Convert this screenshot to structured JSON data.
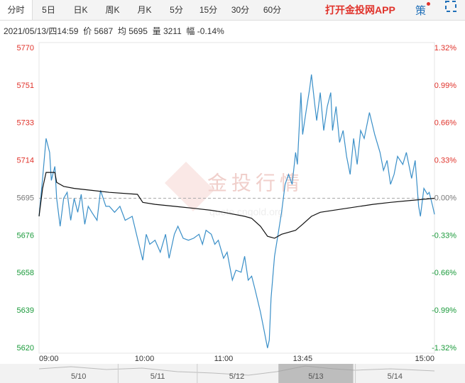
{
  "tabs": [
    "分时",
    "5日",
    "日K",
    "周K",
    "月K",
    "5分",
    "15分",
    "30分",
    "60分"
  ],
  "app_link": "打开金投网APP",
  "strategy": "策",
  "info": {
    "time": "2021/05/13/四14:59",
    "price_label": "价",
    "price": "5687",
    "avg_label": "均",
    "avg": "5695",
    "vol_label": "量",
    "vol": "3211",
    "change_label": "幅",
    "change": "-0.14%"
  },
  "watermark": [
    "金投行情",
    "quote.cngold.org"
  ],
  "navigator": {
    "dates": [
      "5/10",
      "5/11",
      "5/12",
      "5/13",
      "5/14"
    ],
    "selected": 3
  },
  "chart_data": {
    "type": "line",
    "xlim": [
      0,
      225
    ],
    "xticks": [
      {
        "value": 0,
        "label": "09:00"
      },
      {
        "value": 60,
        "label": "10:00"
      },
      {
        "value": 105,
        "label": "11:00"
      },
      {
        "value": 150,
        "label": "13:45"
      },
      {
        "value": 225,
        "label": "15:00"
      }
    ],
    "ylim": [
      5619.9,
      5770.2
    ],
    "yticks": [
      {
        "value": 5770.2,
        "label": "5770"
      },
      {
        "value": 5751.4,
        "label": "5751"
      },
      {
        "value": 5732.6,
        "label": "5733"
      },
      {
        "value": 5713.8,
        "label": "5714"
      },
      {
        "value": 5695.0,
        "label": "5695"
      },
      {
        "value": 5676.2,
        "label": "5676"
      },
      {
        "value": 5657.5,
        "label": "5658"
      },
      {
        "value": 5638.7,
        "label": "5639"
      },
      {
        "value": 5619.9,
        "label": "5620"
      }
    ],
    "y2lim": [
      -1.32,
      1.32
    ],
    "y2ticks": [
      {
        "value": 1.32,
        "label": "1.32%"
      },
      {
        "value": 0.99,
        "label": "0.99%"
      },
      {
        "value": 0.66,
        "label": "0.66%"
      },
      {
        "value": 0.33,
        "label": "0.33%"
      },
      {
        "value": 0,
        "label": "0.00%"
      },
      {
        "value": -0.33,
        "label": "-0.33%"
      },
      {
        "value": -0.66,
        "label": "-0.66%"
      },
      {
        "value": -0.99,
        "label": "-0.99%"
      },
      {
        "value": -1.32,
        "label": "-1.32%"
      }
    ],
    "up_color": "#e0322a",
    "down_color": "#1a9a3a",
    "flat_color": "#777777",
    "series": [
      {
        "color": "#3a8fc8",
        "x": [
          0,
          2,
          4,
          6,
          7,
          9,
          10,
          12,
          14,
          16,
          18,
          20,
          22,
          24,
          26,
          28,
          30,
          33,
          35,
          38,
          40,
          43,
          46,
          49,
          53,
          56,
          59,
          61,
          63,
          66,
          69,
          72,
          74,
          77,
          79,
          82,
          85,
          88,
          91,
          93,
          95,
          98,
          100,
          102,
          105,
          107,
          110,
          112,
          115,
          117,
          119,
          121,
          123,
          126,
          128,
          130,
          131,
          132,
          134,
          136,
          138,
          140,
          142,
          144,
          146,
          147,
          149,
          150,
          152,
          154,
          155,
          157,
          158,
          160,
          162,
          164,
          166,
          167,
          169,
          171,
          173,
          175,
          177,
          179,
          181,
          183,
          185,
          188,
          191,
          194,
          196,
          198,
          200,
          202,
          204,
          207,
          209,
          212,
          214,
          216,
          217,
          219,
          221,
          222,
          224,
          225
        ],
        "values": [
          5686,
          5705,
          5725,
          5718,
          5704,
          5711,
          5695,
          5681,
          5695,
          5698,
          5684,
          5695,
          5688,
          5697,
          5682,
          5691,
          5688,
          5684,
          5699,
          5691,
          5691,
          5688,
          5691,
          5684,
          5686,
          5675,
          5664,
          5677,
          5672,
          5674,
          5668,
          5677,
          5665,
          5677,
          5681,
          5675,
          5674,
          5675,
          5677,
          5672,
          5679,
          5677,
          5672,
          5674,
          5665,
          5668,
          5654,
          5659,
          5658,
          5666,
          5654,
          5656,
          5649,
          5638,
          5629,
          5620,
          5624,
          5645,
          5666,
          5677,
          5688,
          5702,
          5707,
          5702,
          5718,
          5712,
          5748,
          5727,
          5739,
          5750,
          5757,
          5741,
          5734,
          5748,
          5729,
          5741,
          5748,
          5729,
          5741,
          5723,
          5729,
          5716,
          5707,
          5725,
          5712,
          5729,
          5725,
          5738,
          5727,
          5718,
          5709,
          5714,
          5702,
          5707,
          5716,
          5712,
          5718,
          5705,
          5714,
          5691,
          5686,
          5700,
          5697,
          5698,
          5691,
          5687
        ]
      },
      {
        "color": "#111111",
        "x": [
          0,
          2,
          4,
          9,
          10,
          14,
          20,
          30,
          40,
          56,
          59,
          66,
          77,
          88,
          98,
          105,
          117,
          121,
          126,
          130,
          134,
          138,
          146,
          150,
          155,
          160,
          175,
          190,
          200,
          212,
          225
        ],
        "values": [
          5686,
          5700,
          5708,
          5708,
          5703,
          5701,
          5700,
          5699,
          5698,
          5697,
          5693,
          5692,
          5691,
          5690,
          5689,
          5688,
          5686,
          5685,
          5681,
          5676,
          5675,
          5677,
          5679,
          5682,
          5686,
          5688,
          5690,
          5692,
          5693,
          5694,
          5695
        ]
      }
    ]
  }
}
